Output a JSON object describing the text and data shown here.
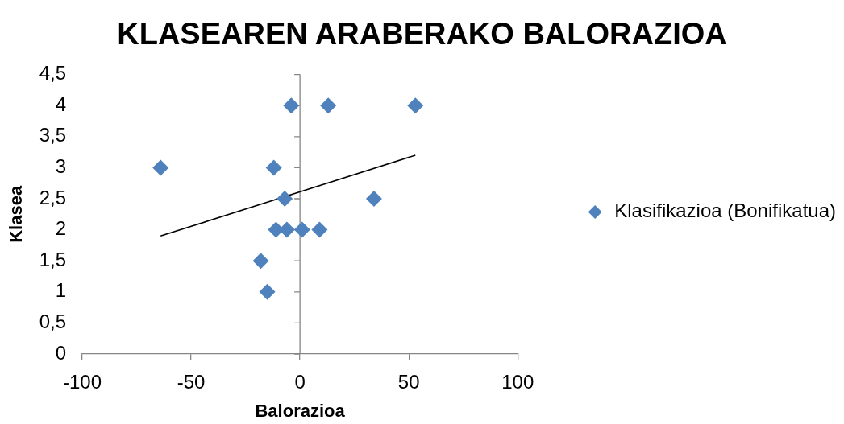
{
  "chart_data": {
    "type": "scatter",
    "title": "KLASEAREN ARABERAKO BALORAZIOA",
    "xlabel": "Balorazioa",
    "ylabel": "Klasea",
    "series": [
      {
        "name": "Klasifikazioa (Bonifikatua)",
        "color": "#4f81bd",
        "marker": "diamond",
        "x": [
          -4,
          13,
          53,
          -64,
          -12,
          -7,
          34,
          -11,
          -6,
          1,
          9,
          -18,
          -15
        ],
        "values": [
          4,
          4,
          4,
          3,
          3,
          2.5,
          2.5,
          2,
          2,
          2,
          2,
          1.5,
          1
        ]
      },
      {
        "type": "line",
        "color": "#000000",
        "marker": "none",
        "x": [
          -64,
          53
        ],
        "values": [
          1.9,
          3.2
        ]
      }
    ],
    "xlim": [
      -100,
      100
    ],
    "xticks": [
      -100,
      -50,
      0,
      50,
      100
    ],
    "ylim": [
      0,
      4.5
    ],
    "yticks": [
      0,
      {
        "value": 0.5,
        "label": "0,5"
      },
      1,
      {
        "value": 1.5,
        "label": "1,5"
      },
      2,
      {
        "value": 2.5,
        "label": "2,5"
      },
      3,
      {
        "value": 3.5,
        "label": "3,5"
      },
      4,
      {
        "value": 4.5,
        "label": "4,5"
      }
    ],
    "legend": "right"
  }
}
